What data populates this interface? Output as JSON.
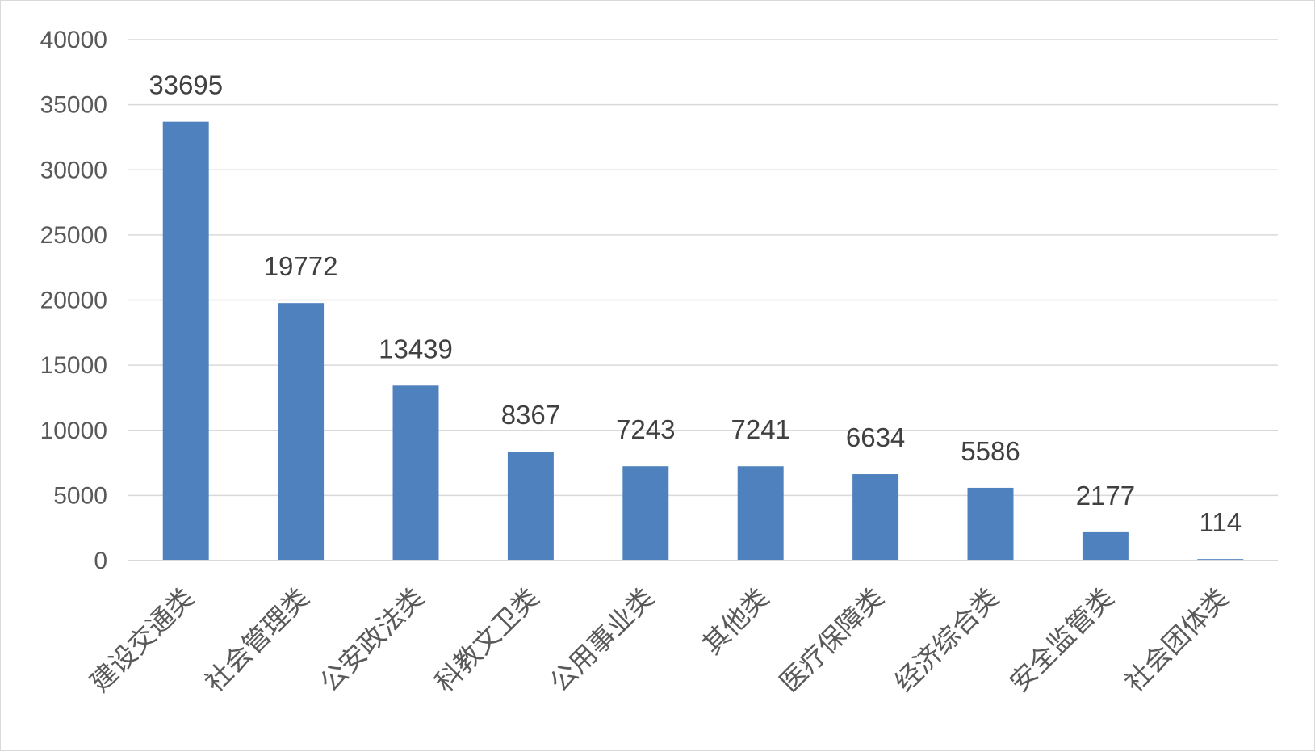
{
  "chart_data": {
    "type": "bar",
    "categories": [
      "建设交通类",
      "社会管理类",
      "公安政法类",
      "科教文卫类",
      "公用事业类",
      "其他类",
      "医疗保障类",
      "经济综合类",
      "安全监管类",
      "社会团体类"
    ],
    "values": [
      33695,
      19772,
      13439,
      8367,
      7243,
      7241,
      6634,
      5586,
      2177,
      114
    ],
    "data_labels": [
      "33695",
      "19772",
      "13439",
      "8367",
      "7243",
      "7241",
      "6634",
      "5586",
      "2177",
      "114"
    ],
    "y_ticks": [
      "0",
      "5000",
      "10000",
      "15000",
      "20000",
      "25000",
      "30000",
      "35000",
      "40000"
    ],
    "title": "",
    "xlabel": "",
    "ylabel": "",
    "ylim": [
      0,
      40000
    ],
    "grid": true,
    "legend": "none",
    "bar_color": "#4e81bd"
  }
}
